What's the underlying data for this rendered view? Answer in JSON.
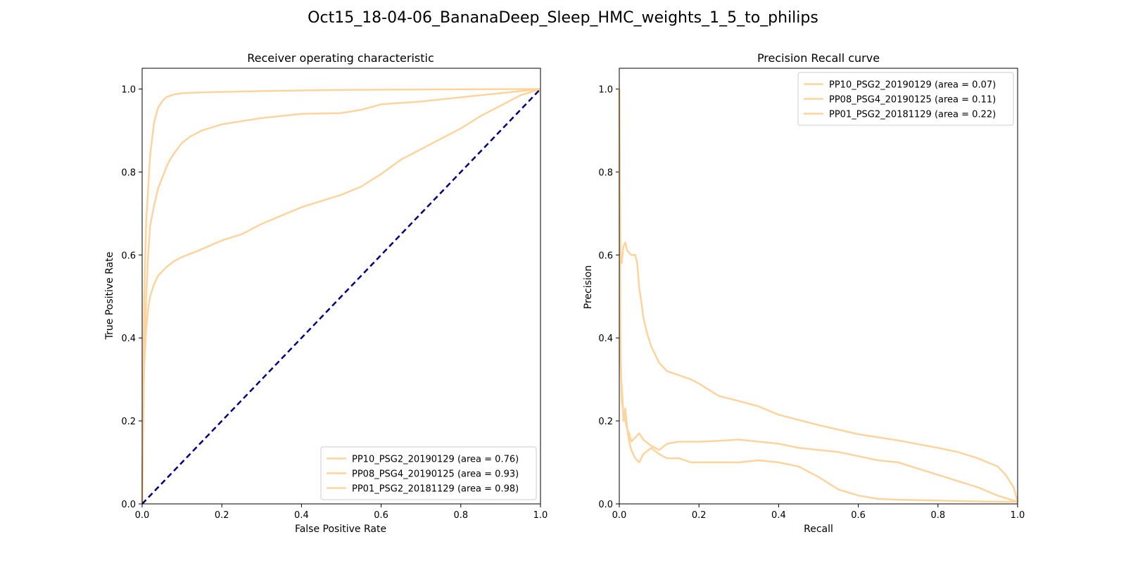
{
  "figure": {
    "suptitle": "Oct15_18-04-06_BananaDeep_Sleep_HMC_weights_1_5_to_philips"
  },
  "chart_data": [
    {
      "type": "line",
      "title": "Receiver operating characteristic",
      "xlabel": "False Positive Rate",
      "ylabel": "True Positive Rate",
      "xlim": [
        0.0,
        1.0
      ],
      "ylim": [
        0.0,
        1.05
      ],
      "xticks": [
        "0.0",
        "0.2",
        "0.4",
        "0.6",
        "0.8",
        "1.0"
      ],
      "yticks": [
        "0.0",
        "0.2",
        "0.4",
        "0.6",
        "0.8",
        "1.0"
      ],
      "legend_position": "lower-right",
      "grid": false,
      "series_color": "#fdd49e",
      "reference_line": {
        "x": [
          0,
          1
        ],
        "y": [
          0,
          1
        ],
        "color": "#000080",
        "style": "dashed"
      },
      "series": [
        {
          "name": "PP10_PSG2_20190129 (area = 0.76)",
          "x": [
            0,
            0.002,
            0.005,
            0.01,
            0.015,
            0.02,
            0.03,
            0.04,
            0.06,
            0.08,
            0.1,
            0.14,
            0.2,
            0.25,
            0.3,
            0.35,
            0.4,
            0.45,
            0.5,
            0.55,
            0.6,
            0.65,
            0.7,
            0.75,
            0.8,
            0.85,
            0.9,
            0.95,
            1.0
          ],
          "y": [
            0,
            0.2,
            0.33,
            0.42,
            0.47,
            0.5,
            0.53,
            0.55,
            0.57,
            0.585,
            0.595,
            0.61,
            0.635,
            0.65,
            0.675,
            0.695,
            0.715,
            0.73,
            0.745,
            0.765,
            0.795,
            0.83,
            0.855,
            0.88,
            0.905,
            0.935,
            0.96,
            0.985,
            1.0
          ]
        },
        {
          "name": "PP08_PSG4_20190125 (area = 0.93)",
          "x": [
            0,
            0.005,
            0.01,
            0.015,
            0.02,
            0.03,
            0.04,
            0.05,
            0.06,
            0.07,
            0.08,
            0.1,
            0.12,
            0.15,
            0.2,
            0.3,
            0.4,
            0.5,
            0.55,
            0.6,
            0.7,
            0.8,
            0.85,
            0.9,
            0.95,
            1.0
          ],
          "y": [
            0,
            0.35,
            0.5,
            0.6,
            0.67,
            0.72,
            0.76,
            0.785,
            0.81,
            0.83,
            0.845,
            0.87,
            0.885,
            0.9,
            0.915,
            0.93,
            0.94,
            0.942,
            0.95,
            0.963,
            0.97,
            0.98,
            0.985,
            0.99,
            0.995,
            1.0
          ]
        },
        {
          "name": "PP01_PSG2_20181129 (area = 0.98)",
          "x": [
            0,
            0.005,
            0.01,
            0.02,
            0.03,
            0.04,
            0.05,
            0.06,
            0.08,
            0.1,
            0.15,
            0.2,
            0.3,
            0.5,
            0.7,
            1.0
          ],
          "y": [
            0,
            0.5,
            0.68,
            0.84,
            0.92,
            0.955,
            0.97,
            0.98,
            0.987,
            0.99,
            0.992,
            0.993,
            0.995,
            0.998,
            0.999,
            1.0
          ]
        }
      ]
    },
    {
      "type": "line",
      "title": "Precision Recall curve",
      "xlabel": "Recall",
      "ylabel": "Precision",
      "xlim": [
        0.0,
        1.0
      ],
      "ylim": [
        0.0,
        1.05
      ],
      "xticks": [
        "0.0",
        "0.2",
        "0.4",
        "0.6",
        "0.8",
        "1.0"
      ],
      "yticks": [
        "0.0",
        "0.2",
        "0.4",
        "0.6",
        "0.8",
        "1.0"
      ],
      "legend_position": "upper-right",
      "grid": false,
      "series_color": "#fdd49e",
      "series": [
        {
          "name": "PP10_PSG2_20190129 (area = 0.07)",
          "x": [
            0,
            0.002,
            0.005,
            0.008,
            0.01,
            0.015,
            0.02,
            0.025,
            0.03,
            0.04,
            0.05,
            0.06,
            0.08,
            0.1,
            0.12,
            0.15,
            0.18,
            0.2,
            0.25,
            0.3,
            0.35,
            0.4,
            0.45,
            0.5,
            0.55,
            0.6,
            0.65,
            0.7,
            0.8,
            0.9,
            1.0
          ],
          "y": [
            1.0,
            0.4,
            0.3,
            0.26,
            0.2,
            0.23,
            0.18,
            0.15,
            0.13,
            0.11,
            0.1,
            0.12,
            0.135,
            0.12,
            0.11,
            0.11,
            0.1,
            0.1,
            0.1,
            0.1,
            0.105,
            0.1,
            0.09,
            0.065,
            0.035,
            0.02,
            0.012,
            0.01,
            0.008,
            0.006,
            0.005
          ]
        },
        {
          "name": "PP08_PSG4_20190125 (area = 0.11)",
          "x": [
            0,
            0.003,
            0.006,
            0.01,
            0.015,
            0.02,
            0.025,
            0.03,
            0.04,
            0.05,
            0.06,
            0.08,
            0.1,
            0.12,
            0.15,
            0.2,
            0.25,
            0.3,
            0.35,
            0.4,
            0.45,
            0.5,
            0.55,
            0.6,
            0.65,
            0.7,
            0.75,
            0.8,
            0.85,
            0.9,
            0.95,
            1.0
          ],
          "y": [
            1.0,
            0.35,
            0.25,
            0.22,
            0.2,
            0.18,
            0.17,
            0.15,
            0.16,
            0.17,
            0.155,
            0.14,
            0.13,
            0.145,
            0.15,
            0.15,
            0.152,
            0.155,
            0.15,
            0.145,
            0.135,
            0.13,
            0.125,
            0.115,
            0.105,
            0.1,
            0.085,
            0.07,
            0.055,
            0.04,
            0.02,
            0.005
          ]
        },
        {
          "name": "PP01_PSG2_20181129 (area = 0.22)",
          "x": [
            0,
            0.003,
            0.006,
            0.01,
            0.015,
            0.02,
            0.03,
            0.04,
            0.045,
            0.05,
            0.055,
            0.06,
            0.07,
            0.08,
            0.1,
            0.12,
            0.15,
            0.18,
            0.2,
            0.25,
            0.3,
            0.35,
            0.4,
            0.5,
            0.6,
            0.7,
            0.8,
            0.85,
            0.9,
            0.95,
            0.97,
            0.99,
            1.0
          ],
          "y": [
            1.0,
            0.6,
            0.58,
            0.62,
            0.63,
            0.61,
            0.6,
            0.6,
            0.58,
            0.52,
            0.49,
            0.45,
            0.41,
            0.38,
            0.34,
            0.32,
            0.31,
            0.3,
            0.29,
            0.26,
            0.248,
            0.235,
            0.215,
            0.19,
            0.168,
            0.153,
            0.135,
            0.125,
            0.11,
            0.09,
            0.07,
            0.04,
            0.005
          ]
        }
      ]
    }
  ]
}
